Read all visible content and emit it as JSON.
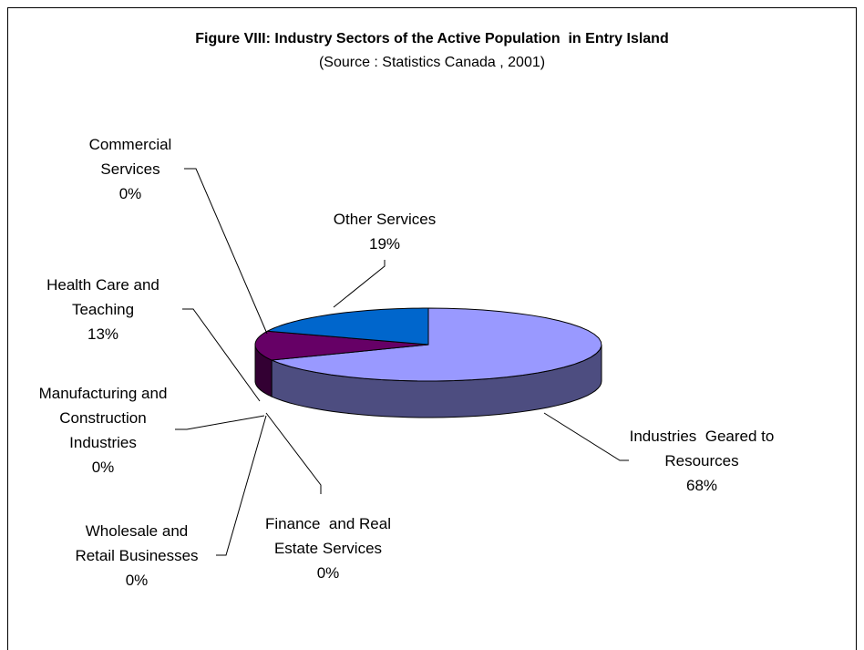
{
  "chart_data": {
    "type": "pie3d",
    "title": "Figure VIII: Industry Sectors of the Active Population  in Entry Island",
    "subtitle": "(Source : Statistics Canada , 2001)",
    "categories": [
      "Industries  Geared to Resources",
      "Finance  and Real Estate Services",
      "Wholesale and Retail Businesses",
      "Manufacturing and Construction Industries",
      "Health Care and Teaching",
      "Commercial Services",
      "Other Services"
    ],
    "values": [
      68,
      0,
      0,
      0,
      13,
      0,
      19
    ],
    "value_labels": [
      "68%",
      "0%",
      "0%",
      "0%",
      "13%",
      "0%",
      "19%"
    ],
    "colors": [
      "#9999ff",
      "#993366",
      "#ffffcc",
      "#ccffff",
      "#660066",
      "#ff8080",
      "#0066cc"
    ]
  }
}
